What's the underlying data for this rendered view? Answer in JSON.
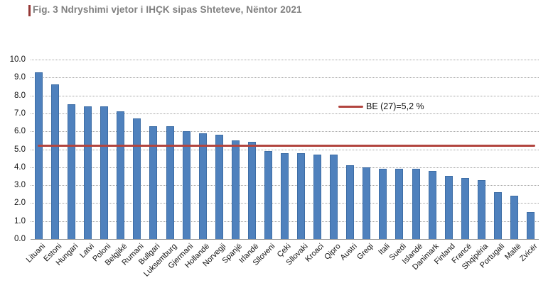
{
  "title": {
    "text": "Fig. 3 Ndryshimi vjetor i IHÇK sipas Shteteve, Nëntor 2021"
  },
  "legend": {
    "label": "BE (27)=5,2 %"
  },
  "chart_data": {
    "type": "bar",
    "title": "Fig. 3 Ndryshimi vjetor i IHÇK sipas Shteteve, Nëntor 2021",
    "categories": [
      "Lituani",
      "Estoni",
      "Hungari",
      "Latvi",
      "Poloni",
      "Belgjikë",
      "Rumani",
      "Bullgari",
      "Luksemburg",
      "Gjermani",
      "Hollandë",
      "Norvegji",
      "Spanjë",
      "Irlandë",
      "Slloveni",
      "Çeki",
      "Sllovaki",
      "Kroaci",
      "Qipro",
      "Austri",
      "Greqi",
      "Itali",
      "Suedi",
      "Islandë",
      "Danimark",
      "Finland",
      "Francë",
      "Shqipëria",
      "Portugali",
      "Maltë",
      "Zvicër"
    ],
    "values": [
      9.3,
      8.6,
      7.5,
      7.4,
      7.4,
      7.1,
      6.7,
      6.3,
      6.3,
      6.0,
      5.9,
      5.8,
      5.5,
      5.4,
      4.9,
      4.8,
      4.8,
      4.7,
      4.7,
      4.1,
      4.0,
      3.9,
      3.9,
      3.9,
      3.8,
      3.5,
      3.4,
      3.3,
      2.6,
      2.4,
      1.5
    ],
    "xlabel": "",
    "ylabel": "",
    "ylim": [
      0,
      10
    ],
    "ytick_labels": [
      "10.0",
      "9.0",
      "8.0",
      "7.0",
      "6.0",
      "5.0",
      "4.0",
      "3.0",
      "2.0",
      "1.0",
      "0.0"
    ],
    "grid": "horizontal-dotted",
    "legend_position": "inside-right",
    "reference_line": {
      "value": 5.2,
      "label": "BE (27)=5,2 %"
    }
  },
  "colors": {
    "bar": "#4f81bd",
    "bar_border": "#3d6da5",
    "reference_line": "#b2453f",
    "title_text": "#808080",
    "title_accent": "#953735",
    "grid": "#a3a3a3",
    "axis": "#8c8c8c"
  }
}
